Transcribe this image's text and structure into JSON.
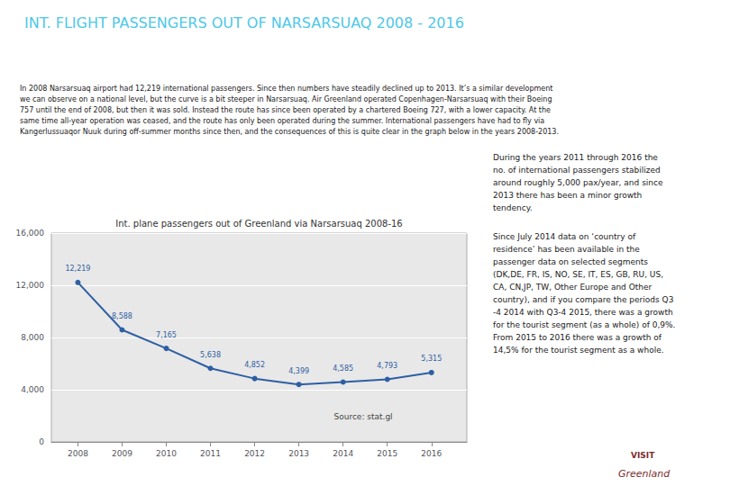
{
  "chart_data": {
    "type": "line",
    "title": "INT. FLIGHT PASSENGERS OUT OF NARSARSUAQ 2008 - 2016",
    "subtitle": "Int. plane passengers out of Greenland via Narsarsuaq 2008-16",
    "annotations": [
      "In 2008 Narsarsuaq airport had 12,219 international passengers. Since then numbers have steadily declined up to 2013. It’s a similar development\nwe can observe on a national level, but the curve is a bit steeper in Narsarsuaq. Air Greenland operated Copenhagen-Narsarsuaq with their Boeing\n757 until the end of 2008, but then it was sold. Instead the route has since been operated by a chartered Boeing 727, with a lower capacity. At the\nsame time all-year operation was ceased, and the route has only been operated during the summer. International passengers have had to fly via\nKangerlussuaqor Nuuk during off-summer months since then, and the consequences of this is quite clear in the graph below in the years 2008-2013.",
      "During the years 2011 through 2016 the\nno. of international passengers stabilized\naround roughly 5,000 pax/year, and since\n2013 there has been a minor growth\ntendency.",
      "Since July 2014 data on ‘country of\nresidence’ has been available in the\npassenger data on selected segments\n(DK,DE, FR, IS, NO, SE, IT, ES, GB, RU, US,\nCA, CN,JP, TW, Other Europe and Other\ncountry), and if you compare the periods Q3\n-4 2014 with Q3-4 2015, there was a growth\nfor the tourist segment (as a whole) of 0,9%.\nFrom 2015 to 2016 there was a growth of\n14,5% for the tourist segment as a whole.",
      "Source: stat.gl",
      "VISIT",
      "Greenland"
    ],
    "x": [
      2008,
      2009,
      2010,
      2011,
      2012,
      2013,
      2014,
      2015,
      2016
    ],
    "values": [
      12219,
      8588,
      7165,
      5638,
      4852,
      4399,
      4585,
      4793,
      5315
    ],
    "value_labels": [
      "12,219",
      "8,588",
      "7,165",
      "5,638",
      "4,852",
      "4,399",
      "4,585",
      "4,793",
      "5,315"
    ],
    "color": "#2E5FA3",
    "marker": "circle",
    "data_labels": true,
    "xlim": [
      2007.4,
      2016.8
    ],
    "xticks": [
      2008,
      2009,
      2010,
      2011,
      2012,
      2013,
      2014,
      2015,
      2016
    ],
    "ylim": [
      0,
      16000
    ],
    "yticks": [
      0,
      {
        "value": 4000,
        "label": "4,000"
      },
      {
        "value": 8000,
        "label": "8,000"
      },
      {
        "value": 12000,
        "label": "12,000"
      },
      {
        "value": 16000,
        "label": "16,000"
      }
    ],
    "grid": true
  }
}
